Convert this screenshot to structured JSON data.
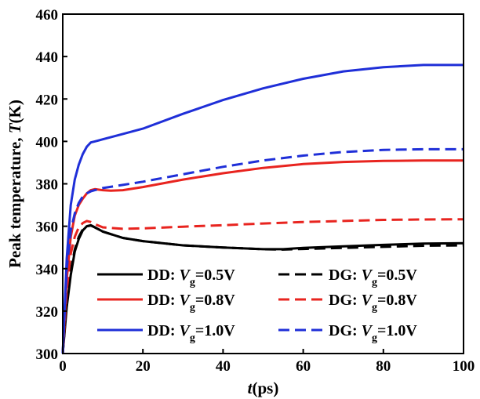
{
  "chart_data": {
    "type": "line",
    "xlabel_main": "t",
    "xlabel_unit": "(ps)",
    "ylabel_main": "Peak temperature, ",
    "ylabel_var": "T",
    "ylabel_unit": "(K)",
    "xlim": [
      0,
      100
    ],
    "ylim": [
      300,
      460
    ],
    "xticks": [
      0,
      20,
      40,
      60,
      80,
      100
    ],
    "yticks": [
      300,
      320,
      340,
      360,
      380,
      400,
      420,
      440,
      460
    ],
    "grid": false,
    "legend_position": "bottom-right",
    "series": [
      {
        "name": "DD: Vg=0.5V",
        "prefix": "DD: ",
        "var": "V",
        "sub": "g",
        "value": "=0.5V",
        "color": "#000000",
        "dash": "solid",
        "x": [
          0,
          1,
          2,
          3,
          4,
          5,
          6,
          7,
          8,
          10,
          15,
          20,
          30,
          40,
          50,
          55,
          60,
          70,
          80,
          90,
          100
        ],
        "y": [
          300,
          322,
          337,
          348,
          354,
          358,
          360,
          360.5,
          359.5,
          357.5,
          354.5,
          353,
          351,
          350,
          349.2,
          349.2,
          349.8,
          350.5,
          351.2,
          351.8,
          352
        ]
      },
      {
        "name": "DG: Vg=0.5V",
        "prefix": "DG: ",
        "var": "V",
        "sub": "g",
        "value": "=0.5V",
        "color": "#000000",
        "dash": "dashed",
        "x": [
          0,
          1,
          2,
          3,
          4,
          5,
          6,
          7,
          8,
          10,
          15,
          20,
          30,
          40,
          50,
          55,
          60,
          70,
          80,
          90,
          100
        ],
        "y": [
          300,
          324,
          339,
          349,
          355,
          358.5,
          360,
          360.3,
          359.5,
          357.5,
          354.5,
          353,
          351,
          350,
          349.2,
          349,
          349.3,
          349.8,
          350.3,
          350.8,
          351
        ]
      },
      {
        "name": "DD: Vg=0.8V",
        "prefix": "DD: ",
        "var": "V",
        "sub": "g",
        "value": "=0.8V",
        "color": "#e8241f",
        "dash": "solid",
        "x": [
          0,
          1,
          2,
          3,
          4,
          5,
          6,
          7,
          8,
          10,
          12,
          15,
          20,
          30,
          40,
          50,
          60,
          70,
          80,
          90,
          100
        ],
        "y": [
          300,
          335,
          355,
          365,
          370,
          373,
          375.5,
          377,
          377.5,
          377,
          376.8,
          377,
          378.5,
          382,
          385,
          387.5,
          389.3,
          390.3,
          390.8,
          391,
          391
        ]
      },
      {
        "name": "DG: Vg=0.8V",
        "prefix": "DG: ",
        "var": "V",
        "sub": "g",
        "value": "=0.8V",
        "color": "#e8241f",
        "dash": "dashed",
        "x": [
          0,
          1,
          2,
          3,
          4,
          5,
          6,
          7,
          8,
          10,
          15,
          20,
          30,
          40,
          50,
          60,
          70,
          80,
          90,
          100
        ],
        "y": [
          300,
          330,
          347,
          355,
          359.5,
          361.5,
          362.5,
          362,
          361,
          359.5,
          358.8,
          359,
          359.8,
          360.5,
          361.3,
          362,
          362.5,
          363,
          363.2,
          363.3
        ]
      },
      {
        "name": "DD: Vg=1.0V",
        "prefix": "DD: ",
        "var": "V",
        "sub": "g",
        "value": "=1.0V",
        "color": "#1f2fd8",
        "dash": "solid",
        "x": [
          0,
          1,
          2,
          3,
          4,
          5,
          6,
          7,
          8,
          10,
          15,
          20,
          30,
          40,
          50,
          60,
          70,
          80,
          90,
          100
        ],
        "y": [
          300,
          345,
          370,
          382,
          389,
          394,
          397.5,
          399.5,
          400,
          401,
          403.5,
          406,
          413,
          419.5,
          425,
          429.5,
          433,
          435,
          436,
          436
        ]
      },
      {
        "name": "DG: Vg=1.0V",
        "prefix": "DG: ",
        "var": "V",
        "sub": "g",
        "value": "=1.0V",
        "color": "#1f2fd8",
        "dash": "dashed",
        "x": [
          0,
          1,
          2,
          3,
          4,
          5,
          6,
          7,
          8,
          10,
          15,
          20,
          30,
          40,
          50,
          60,
          70,
          80,
          90,
          100
        ],
        "y": [
          300,
          340,
          358,
          366,
          371,
          374,
          375.5,
          376.5,
          377,
          378,
          379.5,
          381,
          384.5,
          388,
          391,
          393.3,
          395,
          396,
          396.3,
          396.3
        ]
      }
    ]
  }
}
